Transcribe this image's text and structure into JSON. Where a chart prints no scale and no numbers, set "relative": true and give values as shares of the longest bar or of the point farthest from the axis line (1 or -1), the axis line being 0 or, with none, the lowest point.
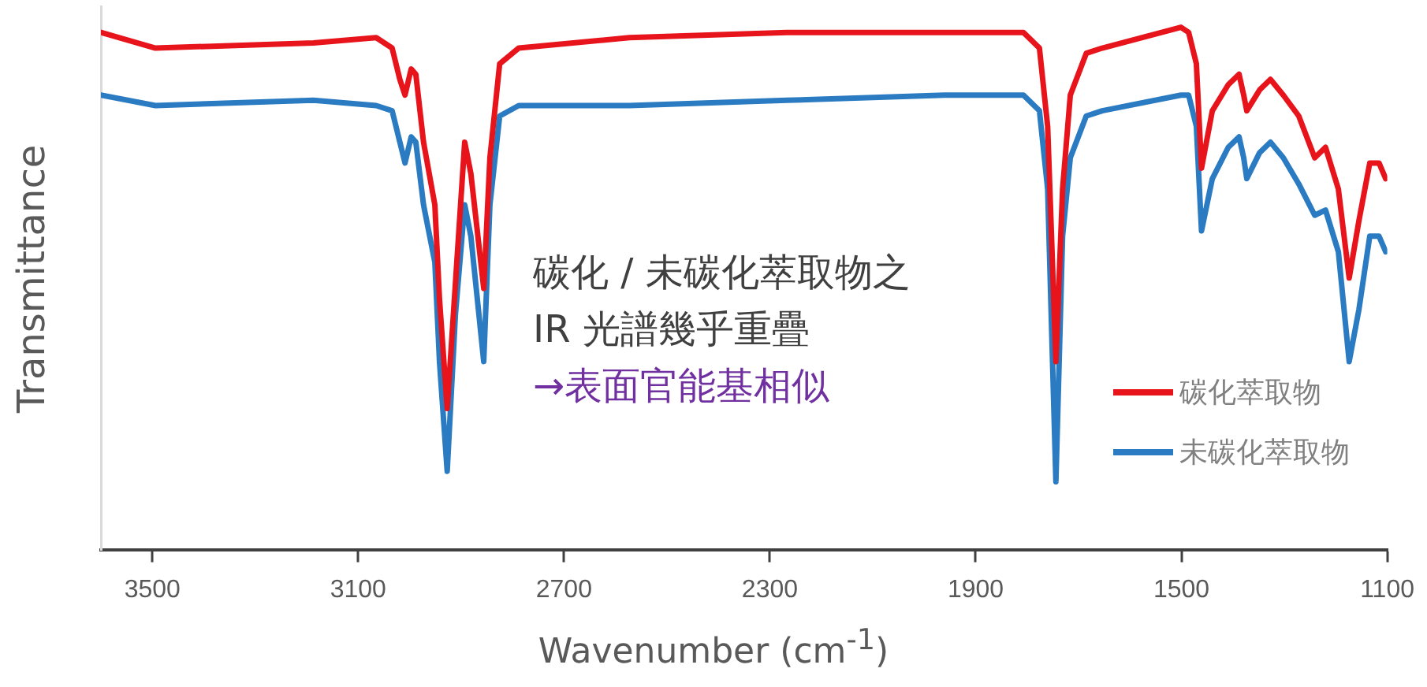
{
  "chart_data": {
    "type": "line",
    "relative": true,
    "xlabel": "Wavenumber (cm$^{-1}$)",
    "ylabel": "Transmittance",
    "x": [
      3600,
      3494,
      3187,
      3065,
      3034,
      3019,
      3009,
      2997,
      2988,
      2973,
      2951,
      2942,
      2927,
      2911,
      2893,
      2881,
      2856,
      2844,
      2825,
      2788,
      2573,
      2267,
      1960,
      1807,
      1776,
      1760,
      1744,
      1731,
      1716,
      1685,
      1654,
      1501,
      1486,
      1471,
      1461,
      1440,
      1409,
      1388,
      1379,
      1373,
      1348,
      1327,
      1302,
      1272,
      1241,
      1220,
      1195,
      1174,
      1155,
      1134,
      1116,
      1103
    ],
    "xlim": [
      3600,
      1100
    ],
    "xticks": [
      3500,
      3100,
      2700,
      2300,
      1900,
      1500,
      1100
    ],
    "series": [
      {
        "name": "碳化萃取物",
        "color": "#e8141b",
        "values": [
          0.99,
          0.96,
          0.97,
          0.98,
          0.96,
          0.9,
          0.87,
          0.92,
          0.91,
          0.78,
          0.66,
          0.48,
          0.27,
          0.51,
          0.78,
          0.72,
          0.5,
          0.75,
          0.93,
          0.96,
          0.98,
          0.99,
          0.99,
          0.99,
          0.96,
          0.81,
          0.36,
          0.69,
          0.87,
          0.95,
          0.96,
          1,
          0.99,
          0.93,
          0.73,
          0.84,
          0.89,
          0.91,
          0.87,
          0.84,
          0.88,
          0.9,
          0.87,
          0.83,
          0.75,
          0.77,
          0.69,
          0.52,
          0.63,
          0.74,
          0.74,
          0.71
        ]
      },
      {
        "name": "未碳化萃取物",
        "color": "#2a7bc1",
        "values": [
          0.87,
          0.85,
          0.86,
          0.85,
          0.84,
          0.78,
          0.74,
          0.79,
          0.78,
          0.66,
          0.55,
          0.36,
          0.15,
          0.45,
          0.66,
          0.6,
          0.36,
          0.66,
          0.83,
          0.85,
          0.85,
          0.86,
          0.87,
          0.87,
          0.84,
          0.69,
          0.13,
          0.6,
          0.75,
          0.83,
          0.84,
          0.87,
          0.87,
          0.81,
          0.61,
          0.71,
          0.77,
          0.79,
          0.75,
          0.71,
          0.76,
          0.78,
          0.75,
          0.7,
          0.64,
          0.65,
          0.57,
          0.36,
          0.46,
          0.6,
          0.6,
          0.57
        ]
      }
    ],
    "annotations": [
      "碳化 / 未碳化萃取物之",
      "IR 光譜幾乎重疊",
      "→表面官能基相似"
    ],
    "legend": "bottom right",
    "grid": false,
    "marker": "none",
    "line_style": "solid"
  }
}
